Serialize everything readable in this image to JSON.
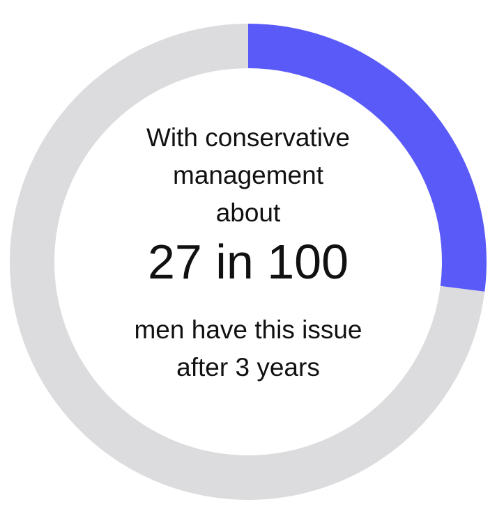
{
  "chart_data": {
    "type": "pie",
    "variant": "donut",
    "categories": [
      "men with this issue",
      "men without this issue"
    ],
    "values": [
      27,
      73
    ],
    "total": 100,
    "start_angle": "top",
    "direction": "clockwise"
  },
  "colors": {
    "highlight": "#5a5af9",
    "remainder": "#dcdcde",
    "text": "#111111",
    "background": "#ffffff"
  },
  "text": {
    "line1": "With conservative",
    "line2": "management",
    "line3": "about",
    "stat": "27 in 100",
    "line4": "men have this issue",
    "line5": "after 3 years"
  }
}
